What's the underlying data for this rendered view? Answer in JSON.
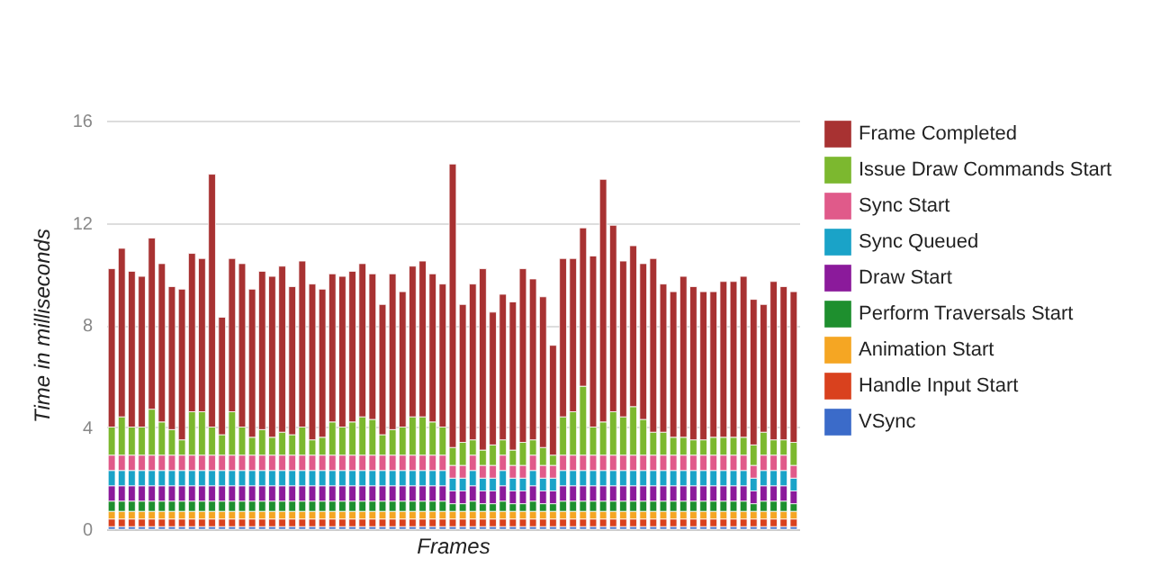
{
  "chart_data": {
    "type": "bar",
    "stacked": true,
    "xlabel": "Frames",
    "ylabel": "Time in milliseconds",
    "categories": [
      null,
      null,
      null,
      null,
      null,
      null,
      null,
      null,
      null,
      null,
      null,
      null,
      null,
      null,
      null,
      null,
      null,
      null,
      null,
      null,
      null,
      null,
      null,
      null,
      null,
      null,
      null,
      null,
      null,
      null,
      null,
      null,
      null,
      null,
      null,
      null,
      null,
      null,
      null,
      null,
      null,
      null,
      null,
      null,
      null,
      null,
      null,
      null,
      null,
      null,
      null,
      null,
      null,
      null,
      null,
      null,
      null,
      null,
      null,
      null,
      null,
      null,
      null,
      null,
      null,
      null,
      null,
      null,
      null
    ],
    "ylim": [
      0,
      16
    ],
    "yticks": [
      0,
      4,
      8,
      12,
      16
    ],
    "grid": "y",
    "legend": "right",
    "tick_labels": "y",
    "series": [
      {
        "name": "VSync",
        "color": "#3b6bc9",
        "values": [
          0.1,
          0.1,
          0.1,
          0.1,
          0.1,
          0.1,
          0.1,
          0.1,
          0.1,
          0.1,
          0.1,
          0.1,
          0.1,
          0.1,
          0.1,
          0.1,
          0.1,
          0.1,
          0.1,
          0.1,
          0.1,
          0.1,
          0.1,
          0.1,
          0.1,
          0.1,
          0.1,
          0.1,
          0.1,
          0.1,
          0.1,
          0.1,
          0.1,
          0.1,
          0.1,
          0.1,
          0.1,
          0.1,
          0.1,
          0.1,
          0.1,
          0.1,
          0.1,
          0.1,
          0.1,
          0.1,
          0.1,
          0.1,
          0.1,
          0.1,
          0.1,
          0.1,
          0.1,
          0.1,
          0.1,
          0.1,
          0.1,
          0.1,
          0.1,
          0.1,
          0.1,
          0.1,
          0.1,
          0.1,
          0.1,
          0.1,
          0.1,
          0.1,
          0.1
        ]
      },
      {
        "name": "Handle Input Start",
        "color": "#d9411e",
        "values": [
          0.3,
          0.3,
          0.3,
          0.3,
          0.3,
          0.3,
          0.3,
          0.3,
          0.3,
          0.3,
          0.3,
          0.3,
          0.3,
          0.3,
          0.3,
          0.3,
          0.3,
          0.3,
          0.3,
          0.3,
          0.3,
          0.3,
          0.3,
          0.3,
          0.3,
          0.3,
          0.3,
          0.3,
          0.3,
          0.3,
          0.3,
          0.3,
          0.3,
          0.3,
          0.3,
          0.3,
          0.3,
          0.3,
          0.3,
          0.3,
          0.3,
          0.3,
          0.3,
          0.3,
          0.3,
          0.3,
          0.3,
          0.3,
          0.3,
          0.3,
          0.3,
          0.3,
          0.3,
          0.3,
          0.3,
          0.3,
          0.3,
          0.3,
          0.3,
          0.3,
          0.3,
          0.3,
          0.3,
          0.3,
          0.3,
          0.3,
          0.3,
          0.3,
          0.3
        ]
      },
      {
        "name": "Animation Start",
        "color": "#f5a623",
        "values": [
          0.3,
          0.3,
          0.3,
          0.3,
          0.3,
          0.3,
          0.3,
          0.3,
          0.3,
          0.3,
          0.3,
          0.3,
          0.3,
          0.3,
          0.3,
          0.3,
          0.3,
          0.3,
          0.3,
          0.3,
          0.3,
          0.3,
          0.3,
          0.3,
          0.3,
          0.3,
          0.3,
          0.3,
          0.3,
          0.3,
          0.3,
          0.3,
          0.3,
          0.3,
          0.3,
          0.3,
          0.3,
          0.3,
          0.3,
          0.3,
          0.3,
          0.3,
          0.3,
          0.3,
          0.3,
          0.3,
          0.3,
          0.3,
          0.3,
          0.3,
          0.3,
          0.3,
          0.3,
          0.3,
          0.3,
          0.3,
          0.3,
          0.3,
          0.3,
          0.3,
          0.3,
          0.3,
          0.3,
          0.3,
          0.3,
          0.3,
          0.3,
          0.3,
          0.3
        ]
      },
      {
        "name": "Perform Traversals Start",
        "color": "#1e8f2e",
        "values": [
          0.4,
          0.4,
          0.4,
          0.4,
          0.4,
          0.4,
          0.4,
          0.4,
          0.4,
          0.4,
          0.4,
          0.4,
          0.4,
          0.4,
          0.4,
          0.4,
          0.4,
          0.4,
          0.4,
          0.4,
          0.4,
          0.4,
          0.4,
          0.4,
          0.4,
          0.4,
          0.4,
          0.4,
          0.4,
          0.4,
          0.4,
          0.4,
          0.4,
          0.4,
          0.3,
          0.3,
          0.4,
          0.3,
          0.3,
          0.4,
          0.3,
          0.3,
          0.4,
          0.3,
          0.3,
          0.4,
          0.4,
          0.4,
          0.4,
          0.4,
          0.4,
          0.4,
          0.4,
          0.4,
          0.4,
          0.4,
          0.4,
          0.4,
          0.4,
          0.4,
          0.4,
          0.4,
          0.4,
          0.4,
          0.3,
          0.4,
          0.4,
          0.4,
          0.3
        ]
      },
      {
        "name": "Draw Start",
        "color": "#8b1a9b",
        "values": [
          0.6,
          0.6,
          0.6,
          0.6,
          0.6,
          0.6,
          0.6,
          0.6,
          0.6,
          0.6,
          0.6,
          0.6,
          0.6,
          0.6,
          0.6,
          0.6,
          0.6,
          0.6,
          0.6,
          0.6,
          0.6,
          0.6,
          0.6,
          0.6,
          0.6,
          0.6,
          0.6,
          0.6,
          0.6,
          0.6,
          0.6,
          0.6,
          0.6,
          0.6,
          0.5,
          0.5,
          0.6,
          0.5,
          0.5,
          0.6,
          0.5,
          0.5,
          0.6,
          0.5,
          0.5,
          0.6,
          0.6,
          0.6,
          0.6,
          0.6,
          0.6,
          0.6,
          0.6,
          0.6,
          0.6,
          0.6,
          0.6,
          0.6,
          0.6,
          0.6,
          0.6,
          0.6,
          0.6,
          0.6,
          0.5,
          0.6,
          0.6,
          0.6,
          0.5
        ]
      },
      {
        "name": "Sync Queued",
        "color": "#1aa3c8",
        "values": [
          0.6,
          0.6,
          0.6,
          0.6,
          0.6,
          0.6,
          0.6,
          0.6,
          0.6,
          0.6,
          0.6,
          0.6,
          0.6,
          0.6,
          0.6,
          0.6,
          0.6,
          0.6,
          0.6,
          0.6,
          0.6,
          0.6,
          0.6,
          0.6,
          0.6,
          0.6,
          0.6,
          0.6,
          0.6,
          0.6,
          0.6,
          0.6,
          0.6,
          0.6,
          0.5,
          0.5,
          0.6,
          0.5,
          0.5,
          0.6,
          0.5,
          0.5,
          0.6,
          0.5,
          0.5,
          0.6,
          0.6,
          0.6,
          0.6,
          0.6,
          0.6,
          0.6,
          0.6,
          0.6,
          0.6,
          0.6,
          0.6,
          0.6,
          0.6,
          0.6,
          0.6,
          0.6,
          0.6,
          0.6,
          0.5,
          0.6,
          0.6,
          0.6,
          0.5
        ]
      },
      {
        "name": "Sync Start",
        "color": "#e05a8a",
        "values": [
          0.6,
          0.6,
          0.6,
          0.6,
          0.6,
          0.6,
          0.6,
          0.6,
          0.6,
          0.6,
          0.6,
          0.6,
          0.6,
          0.6,
          0.6,
          0.6,
          0.6,
          0.6,
          0.6,
          0.6,
          0.6,
          0.6,
          0.6,
          0.6,
          0.6,
          0.6,
          0.6,
          0.6,
          0.6,
          0.6,
          0.6,
          0.6,
          0.6,
          0.6,
          0.5,
          0.5,
          0.6,
          0.5,
          0.5,
          0.6,
          0.5,
          0.5,
          0.6,
          0.5,
          0.5,
          0.6,
          0.6,
          0.6,
          0.6,
          0.6,
          0.6,
          0.6,
          0.6,
          0.6,
          0.6,
          0.6,
          0.6,
          0.6,
          0.6,
          0.6,
          0.6,
          0.6,
          0.6,
          0.6,
          0.5,
          0.6,
          0.6,
          0.6,
          0.5
        ]
      },
      {
        "name": "Issue Draw Commands Start",
        "color": "#7cb82f",
        "values": [
          1.1,
          1.5,
          1.1,
          1.1,
          1.8,
          1.3,
          1.0,
          0.6,
          1.7,
          1.7,
          1.1,
          0.8,
          1.7,
          1.1,
          0.7,
          1.0,
          0.7,
          0.9,
          0.8,
          1.1,
          0.6,
          0.7,
          1.3,
          1.1,
          1.3,
          1.5,
          1.4,
          0.8,
          1.0,
          1.1,
          1.5,
          1.5,
          1.3,
          1.1,
          0.7,
          0.9,
          0.6,
          0.6,
          0.8,
          0.6,
          0.6,
          0.9,
          0.6,
          0.7,
          0.4,
          1.5,
          1.7,
          2.7,
          1.1,
          1.3,
          1.7,
          1.5,
          1.9,
          1.4,
          0.9,
          0.9,
          0.7,
          0.7,
          0.6,
          0.6,
          0.7,
          0.7,
          0.7,
          0.7,
          0.8,
          0.9,
          0.6,
          0.6,
          0.9
        ]
      },
      {
        "name": "Frame Completed",
        "color": "#a83232",
        "values": [
          6.2,
          6.6,
          6.1,
          5.9,
          6.7,
          6.2,
          5.6,
          5.9,
          6.2,
          6.0,
          9.9,
          4.6,
          6.0,
          6.4,
          5.8,
          6.2,
          6.3,
          6.5,
          5.8,
          6.5,
          6.1,
          5.8,
          5.8,
          5.9,
          5.9,
          6.0,
          5.7,
          5.1,
          6.1,
          5.3,
          5.9,
          6.1,
          5.8,
          5.6,
          11.1,
          5.4,
          6.1,
          7.1,
          5.2,
          5.7,
          5.8,
          6.8,
          6.3,
          5.9,
          4.3,
          6.2,
          6.0,
          6.2,
          6.7,
          9.5,
          7.3,
          6.1,
          6.3,
          6.1,
          6.8,
          5.8,
          5.7,
          6.3,
          6.0,
          5.8,
          5.7,
          6.1,
          6.1,
          6.3,
          5.7,
          5.0,
          6.2,
          6.0,
          5.9
        ]
      }
    ]
  }
}
